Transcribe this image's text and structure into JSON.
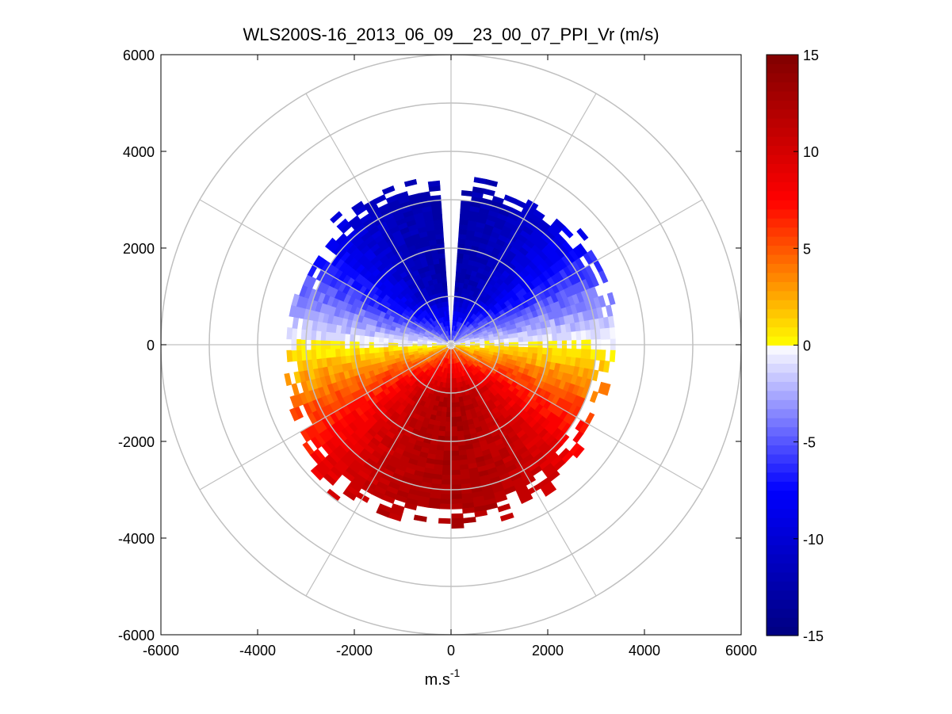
{
  "chart_data": {
    "type": "heatmap",
    "subtype": "polar-ppi",
    "title": "WLS200S-16_2013_06_09__23_00_07_PPI_Vr (m/s)",
    "xlabel_base": "m.s",
    "xlabel_sup": "-1",
    "ylabel": "",
    "xlim": [
      -6000,
      6000
    ],
    "ylim": [
      -6000,
      6000
    ],
    "x_ticks": [
      "-6000",
      "-4000",
      "-2000",
      "0",
      "2000",
      "4000",
      "6000"
    ],
    "y_ticks": [
      "6000",
      "4000",
      "2000",
      "0",
      "-2000",
      "-4000",
      "-6000"
    ],
    "x_tick_values": [
      -6000,
      -4000,
      -2000,
      0,
      2000,
      4000,
      6000
    ],
    "y_tick_values": [
      6000,
      4000,
      2000,
      0,
      -2000,
      -4000,
      -6000
    ],
    "range_rings": [
      1000,
      2000,
      3000,
      4000,
      5000,
      6000
    ],
    "radial_spokes_deg": [
      0,
      30,
      60,
      90,
      120,
      150,
      180,
      210,
      240,
      270,
      300,
      330
    ],
    "max_data_range_by_azimuth": {
      "azimuth_deg": [
        0,
        20,
        40,
        60,
        80,
        100,
        120,
        140,
        160,
        180,
        200,
        220,
        240,
        260,
        280,
        300,
        320,
        340,
        360
      ],
      "range_m": [
        3150,
        3250,
        3350,
        3300,
        3300,
        3100,
        3100,
        3350,
        3500,
        3550,
        3600,
        3700,
        3450,
        3300,
        3250,
        3150,
        3300,
        3400,
        3150
      ]
    },
    "flow": {
      "description": "radial velocity, blue (toward) to the north, red (away) to the south",
      "max_speed_ms": 12.5,
      "zero_velocity_azimuths_deg": [
        108,
        288
      ]
    },
    "missing_sectors_deg": [
      [
        -4,
        2
      ]
    ],
    "colorbar": {
      "range": [
        -15,
        15
      ],
      "ticks": [
        "15",
        "10",
        "5",
        "0",
        "-5",
        "-10",
        "-15"
      ],
      "tick_values": [
        15,
        10,
        5,
        0,
        -5,
        -10,
        -15
      ],
      "colormap": [
        "#000080",
        "#0000ff",
        "#ffffff",
        "#ffff00",
        "#ff0000",
        "#800000"
      ],
      "levels": 64
    }
  }
}
